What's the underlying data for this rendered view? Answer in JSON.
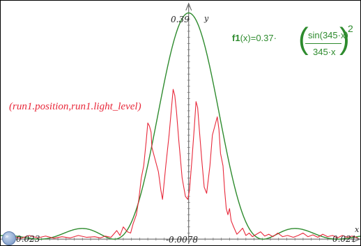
{
  "chart_data": {
    "type": "line",
    "xlim": [
      -0.023,
      0.021
    ],
    "ylim": [
      -0.0078,
      0.39
    ],
    "tick_labels": {
      "x_min": "-0.023",
      "x_max": "0.021",
      "y_min": "-0.0078",
      "y_max": "0.39"
    },
    "axis_names": {
      "x": "x",
      "y": "y"
    },
    "grid": false,
    "series": [
      {
        "label": "f1(x)=0.37·(sin(345·x)/(345·x))^2",
        "color": "#2e8b2e",
        "type": "function",
        "amplitude": 0.37,
        "k": 345
      },
      {
        "label": "(run1.position,run1.light_level)",
        "color": "#e8283a",
        "type": "line",
        "points": [
          [
            -0.0225,
            0.001
          ],
          [
            -0.0215,
            0.004
          ],
          [
            -0.0205,
            0.0015
          ],
          [
            -0.0195,
            0.006
          ],
          [
            -0.0185,
            0.002
          ],
          [
            -0.0175,
            0.005
          ],
          [
            -0.0165,
            0.0015
          ],
          [
            -0.0155,
            0.004
          ],
          [
            -0.0145,
            0.002
          ],
          [
            -0.0135,
            0.006
          ],
          [
            -0.0125,
            0.003
          ],
          [
            -0.0115,
            0.004
          ],
          [
            -0.0108,
            0.002
          ],
          [
            -0.0102,
            0.005
          ],
          [
            -0.0095,
            0.003
          ],
          [
            -0.0088,
            0.014
          ],
          [
            -0.0084,
            0.006
          ],
          [
            -0.008,
            0.02
          ],
          [
            -0.0075,
            0.012
          ],
          [
            -0.0071,
            0.01
          ],
          [
            -0.0068,
            0.025
          ],
          [
            -0.0064,
            0.04
          ],
          [
            -0.0061,
            0.065
          ],
          [
            -0.0058,
            0.1
          ],
          [
            -0.0055,
            0.12
          ],
          [
            -0.0052,
            0.16
          ],
          [
            -0.005,
            0.19
          ],
          [
            -0.0048,
            0.185
          ],
          [
            -0.0046,
            0.175
          ],
          [
            -0.0045,
            0.15
          ],
          [
            -0.0041,
            0.13
          ],
          [
            -0.0037,
            0.11
          ],
          [
            -0.0034,
            0.08
          ],
          [
            -0.0032,
            0.065
          ],
          [
            -0.0028,
            0.12
          ],
          [
            -0.0024,
            0.17
          ],
          [
            -0.0021,
            0.215
          ],
          [
            -0.0019,
            0.245
          ],
          [
            -0.0017,
            0.235
          ],
          [
            -0.0015,
            0.21
          ],
          [
            -0.0012,
            0.16
          ],
          [
            -0.0008,
            0.1
          ],
          [
            -0.0004,
            0.07
          ],
          [
            -0.0001,
            0.065
          ],
          [
            0.0001,
            0.08
          ],
          [
            0.0004,
            0.13
          ],
          [
            0.0007,
            0.185
          ],
          [
            0.0009,
            0.225
          ],
          [
            0.0011,
            0.215
          ],
          [
            0.0013,
            0.18
          ],
          [
            0.0016,
            0.13
          ],
          [
            0.0019,
            0.085
          ],
          [
            0.0022,
            0.075
          ],
          [
            0.0026,
            0.12
          ],
          [
            0.0029,
            0.17
          ],
          [
            0.0032,
            0.185
          ],
          [
            0.0035,
            0.2
          ],
          [
            0.0037,
            0.18
          ],
          [
            0.0039,
            0.14
          ],
          [
            0.0042,
            0.12
          ],
          [
            0.0044,
            0.08
          ],
          [
            0.0046,
            0.05
          ],
          [
            0.0048,
            0.04
          ],
          [
            0.005,
            0.05
          ],
          [
            0.0052,
            0.03
          ],
          [
            0.0055,
            0.02
          ],
          [
            0.0059,
            0.008
          ],
          [
            0.0062,
            0.012
          ],
          [
            0.0066,
            0.018
          ],
          [
            0.007,
            0.006
          ],
          [
            0.0074,
            0.01
          ],
          [
            0.0078,
            0.004
          ],
          [
            0.0083,
            0.008
          ],
          [
            0.0088,
            0.012
          ],
          [
            0.0093,
            0.005
          ],
          [
            0.0098,
            0.008
          ],
          [
            0.0103,
            0.004
          ],
          [
            0.0109,
            0.01
          ],
          [
            0.0115,
            0.004
          ],
          [
            0.0121,
            0.006
          ],
          [
            0.0128,
            0.003
          ],
          [
            0.0134,
            0.006
          ],
          [
            0.014,
            0.01
          ],
          [
            0.0146,
            0.004
          ],
          [
            0.0152,
            0.007
          ],
          [
            0.0158,
            0.003
          ],
          [
            0.0164,
            0.008
          ],
          [
            0.017,
            0.004
          ],
          [
            0.0176,
            0.006
          ],
          [
            0.0182,
            0.002
          ],
          [
            0.0188,
            0.006
          ],
          [
            0.0194,
            0.003
          ],
          [
            0.02,
            0.005
          ],
          [
            0.0207,
            0.002
          ]
        ]
      }
    ],
    "annotations": {
      "scatter_label": "(run1.position,run1.light_level)",
      "function_label": {
        "name": "f1",
        "var": "(x)",
        "equals": "=0.37·",
        "numerator": "sin(345·x)",
        "denominator": "345·x",
        "exponent": "2"
      }
    }
  },
  "nav_badge": {
    "icon": "double-chevron-icon",
    "glyph": "»"
  }
}
